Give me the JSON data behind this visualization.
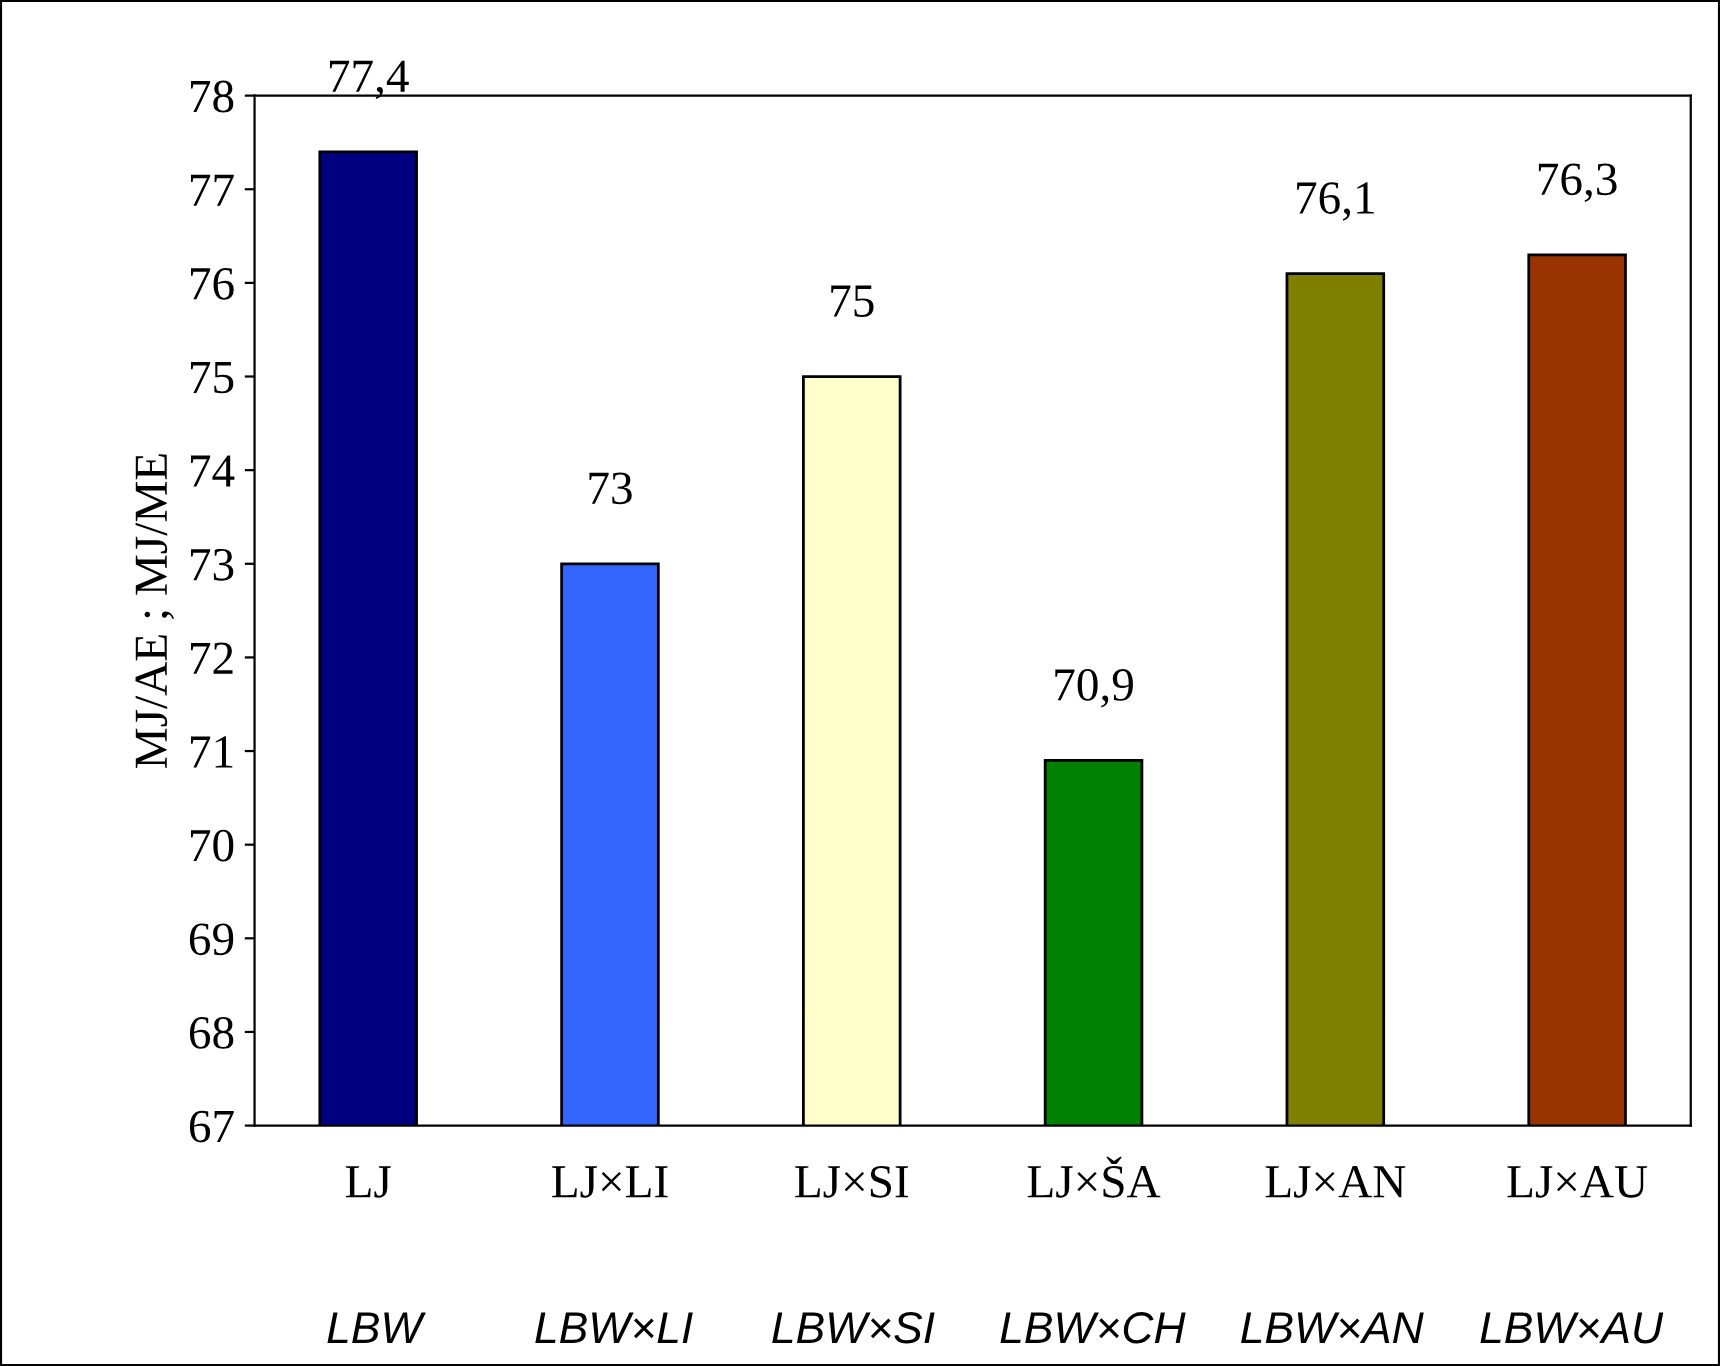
{
  "chart_data": {
    "type": "bar",
    "ylabel": "MJ/AE ; MJ/ME",
    "categories": [
      "LJ",
      "LJ×LI",
      "LJ×SI",
      "LJ×ŠA",
      "LJ×AN",
      "LJ×AU"
    ],
    "values": [
      77.4,
      73,
      75,
      70.9,
      76.1,
      76.3
    ],
    "colors": [
      "#000080",
      "#3366ff",
      "#ffffcc",
      "#008000",
      "#808000",
      "#993300"
    ],
    "value_labels": [
      "77,4",
      "73",
      "75",
      "70,9",
      "76,1",
      "76,3"
    ],
    "ylim": [
      67,
      78
    ],
    "yticks": [
      67,
      68,
      69,
      70,
      71,
      72,
      73,
      74,
      75,
      76,
      77,
      78
    ],
    "grid": false,
    "annotations": [
      "LBW",
      "LBW×LI",
      "LBW×SI",
      "LBW×CH",
      "LBW×AN",
      "LBW×AU"
    ]
  }
}
